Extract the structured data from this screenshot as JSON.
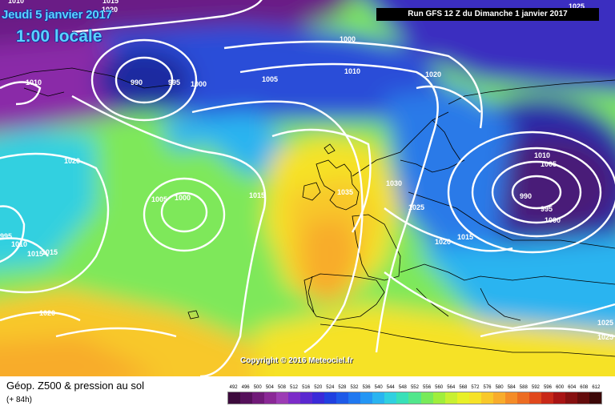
{
  "map": {
    "date": "Jeudi 5 janvier 2017",
    "time": "1:00 locale",
    "run": "Run GFS 12 Z du Dimanche 1 janvier 2017",
    "copyright": "Copyright © 2016 Meteociel.fr",
    "isobar_labels": [
      "1010",
      "1020",
      "1015",
      "1000",
      "990",
      "995",
      "1000",
      "1005",
      "1010",
      "1020",
      "1025",
      "1010",
      "1020",
      "1005",
      "1000",
      "1015",
      "1035",
      "1030",
      "1025",
      "1020",
      "1015",
      "1010",
      "1005",
      "990",
      "995",
      "1000",
      "995",
      "1010",
      "1015",
      "1015",
      "1020",
      "1025",
      "1025"
    ]
  },
  "legend": {
    "title": "Géop. Z500 & pression au sol",
    "subtitle": "(+ 84h)",
    "scale_values": [
      "492",
      "496",
      "500",
      "504",
      "508",
      "512",
      "516",
      "520",
      "524",
      "528",
      "532",
      "536",
      "540",
      "544",
      "548",
      "552",
      "556",
      "560",
      "564",
      "568",
      "572",
      "576",
      "580",
      "584",
      "588",
      "592",
      "596",
      "600",
      "604",
      "608",
      "612"
    ],
    "scale_colors": [
      "#3c0a3c",
      "#55105a",
      "#701a78",
      "#8a2896",
      "#9c3cb4",
      "#7c2cc8",
      "#5a28d0",
      "#3a2ad8",
      "#2040e0",
      "#1e5ae8",
      "#2078f0",
      "#2496f4",
      "#2ab4f0",
      "#30d0e0",
      "#38e0b8",
      "#52e68c",
      "#78ea5a",
      "#a0ee3c",
      "#c8f032",
      "#e8f028",
      "#f6e228",
      "#f8c82a",
      "#f8ac2c",
      "#f48c28",
      "#ec6c22",
      "#e0481c",
      "#c82818",
      "#a81414",
      "#861010",
      "#640c0c",
      "#3c0808"
    ]
  }
}
